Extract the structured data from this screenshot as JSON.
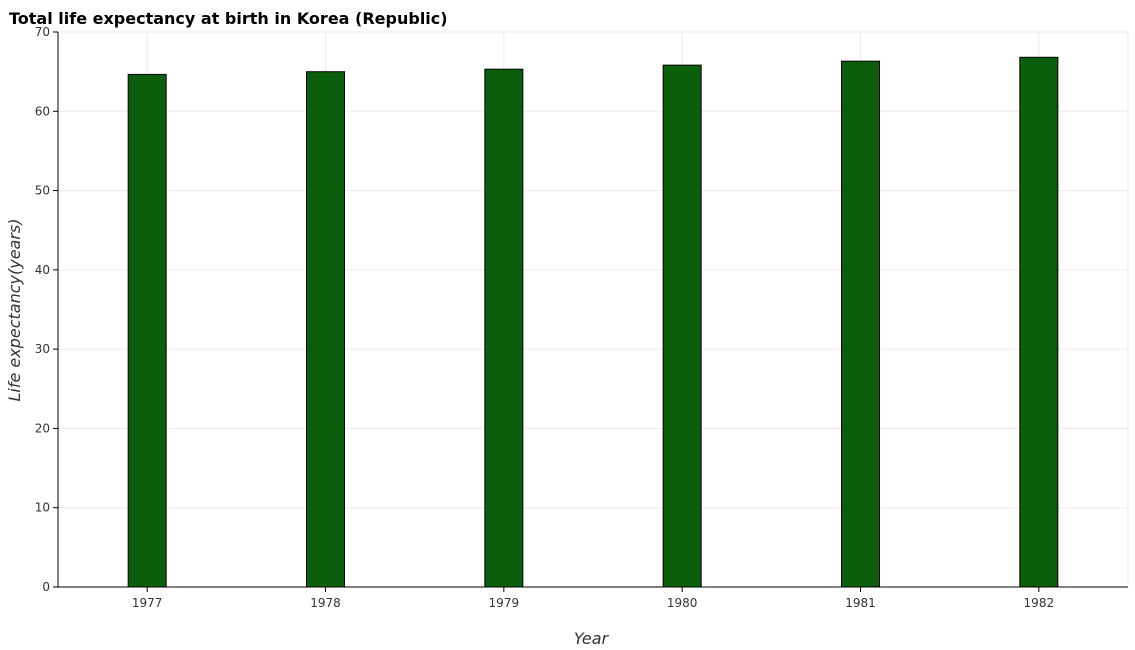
{
  "chart_data": {
    "type": "bar",
    "title": "Total life expectancy at birth in Korea (Republic)",
    "xlabel": "Year",
    "ylabel": "Life expectancy(years)",
    "categories": [
      "1977",
      "1978",
      "1979",
      "1980",
      "1981",
      "1982"
    ],
    "values": [
      64.65,
      64.99,
      65.31,
      65.82,
      66.32,
      66.81
    ],
    "ylim": [
      0,
      70
    ],
    "yticks": [
      0,
      10,
      20,
      30,
      40,
      50,
      60,
      70
    ],
    "grid": true,
    "bar_color": "#0b5e0b",
    "bar_edge_color": "#000000"
  }
}
